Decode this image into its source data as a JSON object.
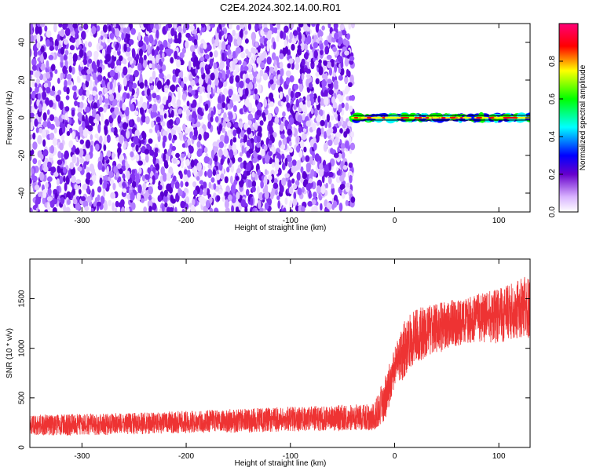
{
  "title": "C2E4.2024.302.14.00.R01",
  "chart_data": [
    {
      "type": "heatmap",
      "xlabel": "Height of straight line (km)",
      "ylabel": "Frequency (Hz)",
      "xlim": [
        -350,
        130
      ],
      "ylim": [
        -50,
        50
      ],
      "xticks": [
        -300,
        -200,
        -100,
        0,
        100
      ],
      "yticks": [
        -40,
        -20,
        0,
        20,
        40
      ],
      "noise_region_x": [
        -350,
        -40
      ],
      "signal_band": {
        "x": [
          -40,
          130
        ],
        "frequency": 0
      },
      "colorbar": {
        "label": "Normalized spectral amplitude",
        "range": [
          0,
          1
        ],
        "ticks": [
          0.0,
          0.2,
          0.4,
          0.6,
          0.8
        ],
        "colors": [
          "#ffffff",
          "#6600cc",
          "#0000ff",
          "#00ffff",
          "#00ff00",
          "#ffff00",
          "#ff0000",
          "#ff0088"
        ]
      }
    },
    {
      "type": "line",
      "xlabel": "Height of straight line (km)",
      "ylabel": "SNR (10 * v/v)",
      "xlim": [
        -350,
        130
      ],
      "ylim": [
        0,
        1900
      ],
      "xticks": [
        -300,
        -200,
        -100,
        0,
        100
      ],
      "yticks": [
        0,
        500,
        1000,
        1500
      ],
      "color": "#ee3333",
      "envelope": {
        "x": [
          -350,
          -300,
          -250,
          -200,
          -150,
          -100,
          -50,
          -20,
          -10,
          0,
          10,
          20,
          40,
          60,
          80,
          100,
          120,
          130
        ],
        "low": [
          120,
          120,
          130,
          140,
          150,
          160,
          170,
          170,
          250,
          600,
          700,
          850,
          950,
          1000,
          1050,
          1050,
          1100,
          1100
        ],
        "high": [
          330,
          340,
          350,
          370,
          390,
          410,
          430,
          440,
          700,
          1000,
          1300,
          1400,
          1450,
          1500,
          1550,
          1600,
          1700,
          1750
        ]
      }
    }
  ]
}
